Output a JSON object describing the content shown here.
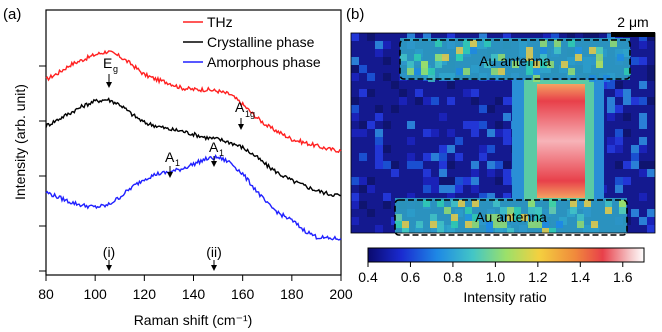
{
  "panel_a": {
    "label": "(a)",
    "legend": [
      "THz",
      "Crystalline phase",
      "Amorphous phase"
    ],
    "annotations": {
      "eg": "E",
      "eg_sub": "g",
      "a1g": "A",
      "a1g_sub": "1g",
      "a1_left": "A",
      "a1_left_sub": "1",
      "a1_right": "A",
      "a1_right_sub": "1",
      "marker_i": "(i)",
      "marker_ii": "(ii)"
    }
  },
  "panel_b": {
    "label": "(b)",
    "scale_bar": "2 μm",
    "antenna_top": "Au antenna",
    "antenna_bottom": "Au antenna",
    "colorbar_label": "Intensity ratio",
    "colorbar_ticks": [
      "0.4",
      "0.6",
      "0.8",
      "1.0",
      "1.2",
      "1.4",
      "1.6"
    ],
    "colorbar_range": [
      0.4,
      1.7
    ]
  },
  "chart_data": [
    {
      "type": "line",
      "xlabel": "Raman shift (cm⁻¹)",
      "ylabel": "Intensity (arb. unit)",
      "xlim": [
        80,
        200
      ],
      "xticks": [
        "80",
        "100",
        "120",
        "140",
        "160",
        "180",
        "200"
      ],
      "xtick_values": [
        80,
        100,
        120,
        140,
        160,
        180,
        200
      ],
      "series": [
        {
          "name": "THz",
          "color": "#ff2020",
          "x": [
            80,
            85,
            90,
            95,
            100,
            105,
            110,
            115,
            120,
            125,
            130,
            135,
            140,
            145,
            150,
            155,
            160,
            165,
            170,
            175,
            180,
            185,
            190,
            195,
            200
          ],
          "y": [
            0.88,
            0.92,
            0.97,
            1.0,
            1.03,
            1.05,
            1.02,
            0.97,
            0.91,
            0.88,
            0.86,
            0.83,
            0.82,
            0.82,
            0.81,
            0.79,
            0.73,
            0.66,
            0.6,
            0.56,
            0.52,
            0.5,
            0.48,
            0.46,
            0.45
          ]
        },
        {
          "name": "Crystalline phase",
          "color": "#000000",
          "x": [
            80,
            85,
            90,
            95,
            100,
            105,
            110,
            115,
            120,
            125,
            130,
            135,
            140,
            145,
            150,
            155,
            160,
            165,
            170,
            175,
            180,
            185,
            190,
            195,
            200
          ],
          "y": [
            0.6,
            0.64,
            0.68,
            0.72,
            0.75,
            0.76,
            0.73,
            0.67,
            0.62,
            0.6,
            0.58,
            0.57,
            0.55,
            0.53,
            0.52,
            0.5,
            0.47,
            0.42,
            0.36,
            0.31,
            0.27,
            0.24,
            0.21,
            0.19,
            0.18
          ]
        },
        {
          "name": "Amorphous phase",
          "color": "#2020ff",
          "x": [
            80,
            85,
            90,
            95,
            100,
            105,
            110,
            115,
            120,
            125,
            130,
            135,
            140,
            145,
            150,
            155,
            160,
            165,
            170,
            175,
            180,
            185,
            190,
            195,
            200
          ],
          "y": [
            0.2,
            0.17,
            0.14,
            0.12,
            0.11,
            0.12,
            0.17,
            0.23,
            0.28,
            0.31,
            0.32,
            0.34,
            0.37,
            0.4,
            0.41,
            0.38,
            0.31,
            0.22,
            0.13,
            0.07,
            0.03,
            -0.03,
            -0.07,
            -0.08,
            -0.08
          ]
        }
      ]
    },
    {
      "type": "heatmap",
      "colorbar_label": "Intensity ratio",
      "range": [
        0.4,
        1.7
      ]
    }
  ]
}
